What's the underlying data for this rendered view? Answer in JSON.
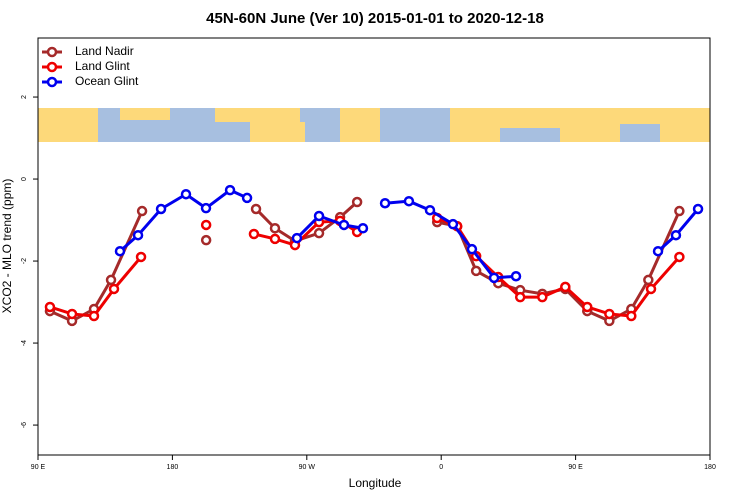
{
  "chart_data": {
    "type": "line",
    "title": "45N-60N June (Ver 10)   2015-01-01 to 2020-12-18",
    "xlabel": "Longitude",
    "ylabel": "XCO2 - MLO trend (ppm)",
    "xlim": [
      90,
      540
    ],
    "ylim": [
      -6.73,
      3.44
    ],
    "xticks": [
      {
        "value": 90,
        "label": "90 E"
      },
      180,
      {
        "value": 270,
        "label": "90 W"
      },
      {
        "value": 360,
        "label": "0"
      },
      {
        "value": 450,
        "label": "90 E"
      },
      {
        "value": 540,
        "label": "180"
      }
    ],
    "yticks": [
      2,
      0,
      -2,
      -4,
      -6
    ],
    "legend": "top-left",
    "series": [
      {
        "name": "Land Nadir",
        "color": "#a52a2a",
        "x": [
          98,
          112.8,
          127.5,
          138.9,
          159.7,
          null,
          202.6,
          null,
          236,
          248.7,
          262.1,
          278.2,
          292.3,
          303.7,
          null,
          357.3,
          370.7,
          383.4,
          398.2,
          412.9,
          427.7,
          443.1,
          457.8,
          472.6,
          487.3,
          498.7,
          519.5
        ],
        "values": [
          -3.22,
          -3.46,
          -3.17,
          -2.46,
          -0.78,
          null,
          -1.49,
          null,
          -0.73,
          -1.2,
          -1.51,
          -1.32,
          -0.93,
          -0.56,
          null,
          -1.05,
          -1.15,
          -2.24,
          -2.54,
          -2.71,
          -2.8,
          -2.68,
          -3.22,
          -3.46,
          -3.17,
          -2.46,
          -0.78
        ]
      },
      {
        "name": "Land Glint",
        "color": "#ee0000",
        "x": [
          98,
          112.8,
          127.5,
          140.9,
          159,
          null,
          202.6,
          null,
          234.6,
          248.7,
          262.1,
          278.2,
          292.3,
          303.7,
          null,
          357.3,
          370.7,
          383.4,
          398.2,
          412.9,
          427.7,
          443.1,
          457.8,
          472.6,
          487.3,
          500.5,
          519.5
        ],
        "values": [
          -3.12,
          -3.29,
          -3.34,
          -2.68,
          -1.9,
          null,
          -1.12,
          null,
          -1.34,
          -1.46,
          -1.61,
          -1.05,
          -1.02,
          -1.29,
          null,
          -0.95,
          -1.15,
          -1.88,
          -2.39,
          -2.88,
          -2.88,
          -2.63,
          -3.12,
          -3.29,
          -3.34,
          -2.68,
          -1.9
        ]
      },
      {
        "name": "Ocean Glint",
        "color": "#0000ee",
        "x": [
          144.9,
          157,
          172.4,
          189.1,
          202.5,
          218.6,
          230,
          null,
          263.4,
          278.2,
          294.9,
          307.6,
          null,
          322.4,
          338.4,
          352.5,
          367.9,
          380.6,
          395.4,
          410.1,
          null,
          505.2,
          517.2,
          532
        ],
        "values": [
          -1.76,
          -1.37,
          -0.73,
          -0.37,
          -0.71,
          -0.27,
          -0.46,
          null,
          -1.44,
          -0.9,
          -1.12,
          -1.2,
          null,
          -0.59,
          -0.54,
          -0.76,
          -1.1,
          -1.71,
          -2.41,
          -2.37,
          null,
          -1.76,
          -1.37,
          -0.73
        ]
      }
    ]
  }
}
